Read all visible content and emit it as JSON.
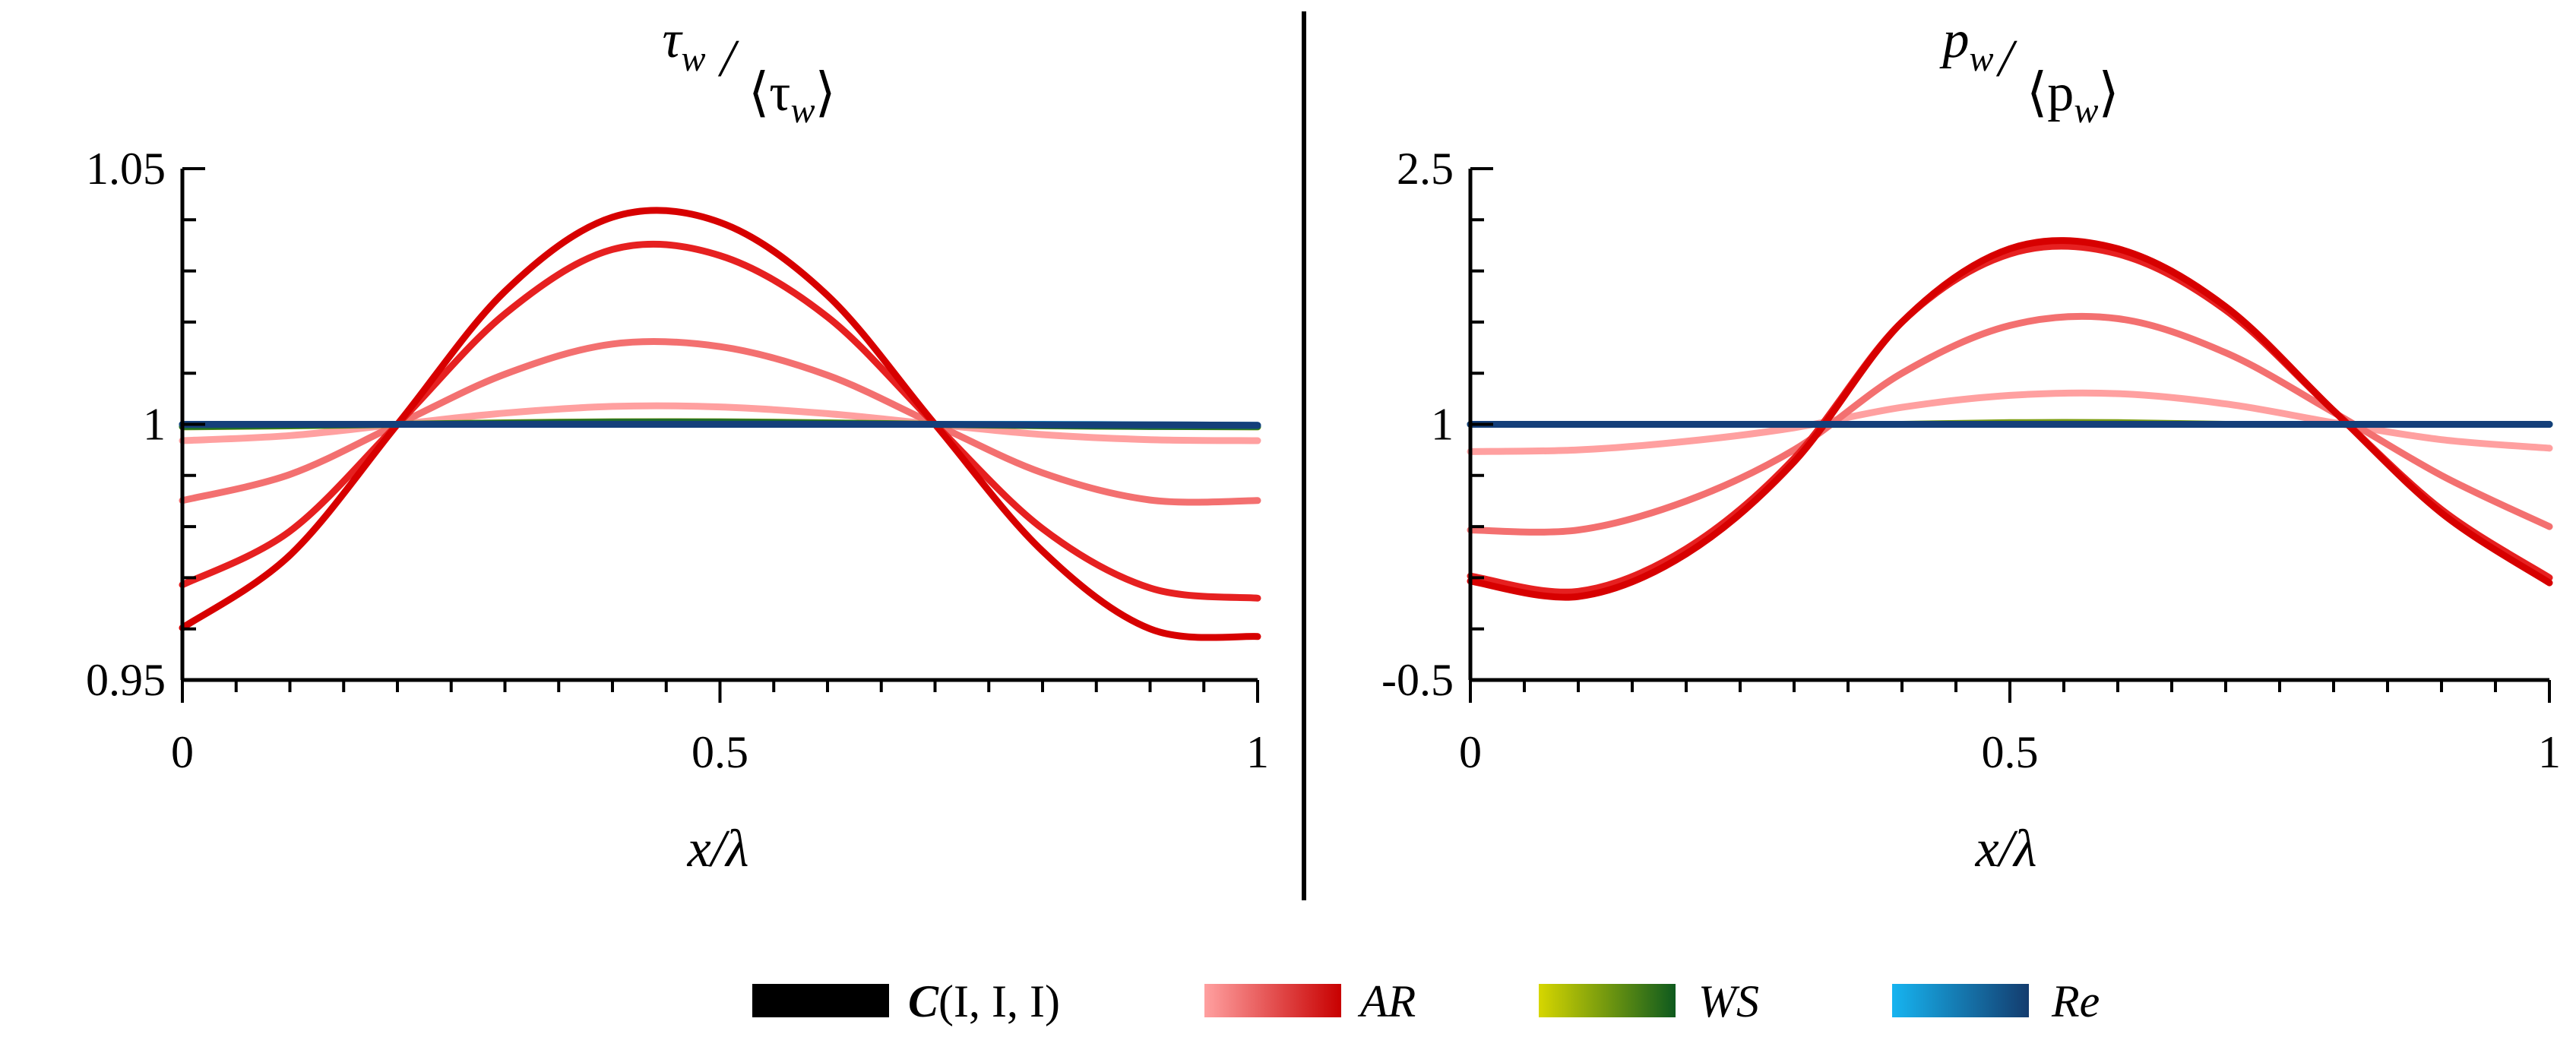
{
  "chart_data": [
    {
      "type": "line",
      "title": "τw/⟨τw⟩",
      "title_main": "τ",
      "title_main_sub": "w",
      "title_den": "⟨τ",
      "title_den_sub": "w",
      "title_den_close": "⟩",
      "xlabel": "x/λ",
      "xlim": [
        0,
        1
      ],
      "ylim": [
        0.95,
        1.05
      ],
      "xticks": [
        0,
        0.5,
        1
      ],
      "xtick_labels": [
        "0",
        "0.5",
        "1"
      ],
      "yticks": [
        0.95,
        1,
        1.05
      ],
      "ytick_labels": [
        "0.95",
        "1",
        "1.05"
      ],
      "x": [
        0,
        0.1,
        0.2,
        0.3,
        0.4,
        0.5,
        0.6,
        0.7,
        0.8,
        0.9,
        1.0
      ],
      "series": [
        {
          "name": "AR",
          "color": "#ffa0a0",
          "values": [
            0.9968,
            0.9978,
            1.0,
            1.0022,
            1.0035,
            1.0034,
            1.0021,
            1.0,
            0.998,
            0.997,
            0.9968
          ]
        },
        {
          "name": "AR",
          "color": "#f37070",
          "values": [
            0.9851,
            0.9902,
            1.0,
            1.0098,
            1.0157,
            1.0152,
            1.0096,
            1.0,
            0.9905,
            0.9852,
            0.9851
          ]
        },
        {
          "name": "AR",
          "color": "#e62020",
          "values": [
            0.9686,
            0.9791,
            1.0,
            1.0216,
            1.0342,
            1.033,
            1.021,
            1.0,
            0.9796,
            0.968,
            0.966
          ]
        },
        {
          "name": "AR",
          "color": "#d70000",
          "values": [
            0.9602,
            0.9744,
            1.0,
            1.026,
            1.0405,
            1.0395,
            1.0252,
            1.0,
            0.9752,
            0.96,
            0.9585
          ]
        },
        {
          "name": "WS",
          "color": "#7a9c10",
          "values": [
            0.9995,
            0.9997,
            1.0,
            1.0003,
            1.0005,
            1.0005,
            1.0003,
            1.0,
            0.9997,
            0.9996,
            0.9995
          ]
        },
        {
          "name": "WS",
          "color": "#1f6e2a",
          "values": [
            0.9996,
            0.9998,
            1.0,
            1.0002,
            1.0004,
            1.0004,
            1.0002,
            1.0,
            0.9998,
            0.9996,
            0.9996
          ]
        },
        {
          "name": "Re",
          "color": "#1a8fd0",
          "values": [
            1.0,
            1.0,
            1.0,
            1.0,
            1.0,
            1.0,
            1.0,
            1.0,
            1.0,
            0.9999,
            0.9998
          ]
        },
        {
          "name": "Re",
          "color": "#143f7a",
          "values": [
            1.0,
            1.0,
            1.0,
            1.0,
            1.0,
            1.0,
            1.0,
            1.0,
            0.9999,
            0.9999,
            0.9998
          ]
        }
      ]
    },
    {
      "type": "line",
      "title": "pw/⟨pw⟩",
      "title_main": "p",
      "title_main_sub": "w",
      "title_den": "⟨p",
      "title_den_sub": "w",
      "title_den_close": "⟩",
      "xlabel": "x/λ",
      "xlim": [
        0,
        1
      ],
      "ylim": [
        -0.5,
        2.5
      ],
      "xticks": [
        0,
        0.5,
        1
      ],
      "xtick_labels": [
        "0",
        "0.5",
        "1"
      ],
      "yticks": [
        -0.5,
        1,
        2.5
      ],
      "ytick_labels": [
        "-0.5",
        "1",
        "2.5"
      ],
      "x": [
        0,
        0.1,
        0.2,
        0.3,
        0.4,
        0.5,
        0.6,
        0.7,
        0.8,
        0.9,
        1.0
      ],
      "series": [
        {
          "name": "AR",
          "color": "#ffa0a0",
          "values": [
            0.84,
            0.85,
            0.9,
            0.98,
            1.1,
            1.17,
            1.18,
            1.12,
            1.01,
            0.91,
            0.86
          ]
        },
        {
          "name": "AR",
          "color": "#f37070",
          "values": [
            0.38,
            0.38,
            0.55,
            0.85,
            1.3,
            1.58,
            1.62,
            1.42,
            1.07,
            0.7,
            0.4
          ]
        },
        {
          "name": "AR",
          "color": "#e62020",
          "values": [
            0.11,
            0.02,
            0.27,
            0.8,
            1.6,
            2.0,
            2.0,
            1.67,
            1.08,
            0.5,
            0.1
          ]
        },
        {
          "name": "AR",
          "color": "#d70000",
          "values": [
            0.08,
            -0.01,
            0.24,
            0.78,
            1.6,
            2.03,
            2.03,
            1.69,
            1.08,
            0.48,
            0.07
          ]
        },
        {
          "name": "WS",
          "color": "#7a9c10",
          "values": [
            1.0,
            1.0,
            1.0,
            1.0,
            1.0,
            1.01,
            1.01,
            1.0,
            1.0,
            1.0,
            1.0
          ]
        },
        {
          "name": "WS",
          "color": "#1f6e2a",
          "values": [
            1.0,
            1.0,
            1.0,
            1.0,
            1.0,
            1.0,
            1.0,
            1.0,
            1.0,
            1.0,
            1.0
          ]
        },
        {
          "name": "Re",
          "color": "#1a8fd0",
          "values": [
            1.0,
            1.0,
            1.0,
            1.0,
            1.0,
            1.0,
            1.0,
            1.0,
            1.0,
            1.0,
            1.0
          ]
        },
        {
          "name": "Re",
          "color": "#143f7a",
          "values": [
            1.0,
            1.0,
            1.0,
            1.0,
            1.0,
            1.0,
            1.0,
            1.0,
            1.0,
            1.0,
            1.0
          ]
        }
      ]
    }
  ],
  "legend": [
    {
      "label_bold": "C",
      "label_rest": "(I, I, I)",
      "colors": [
        "#000000",
        "#000000"
      ]
    },
    {
      "label": "AR",
      "colors": [
        "#ffa0a0",
        "#c80000"
      ]
    },
    {
      "label": "WS",
      "colors": [
        "#d6d600",
        "#0e5a1e"
      ]
    },
    {
      "label": "Re",
      "colors": [
        "#16b4f0",
        "#143c6e"
      ]
    }
  ],
  "colors": {
    "axis": "#000000",
    "divider": "#000000"
  }
}
